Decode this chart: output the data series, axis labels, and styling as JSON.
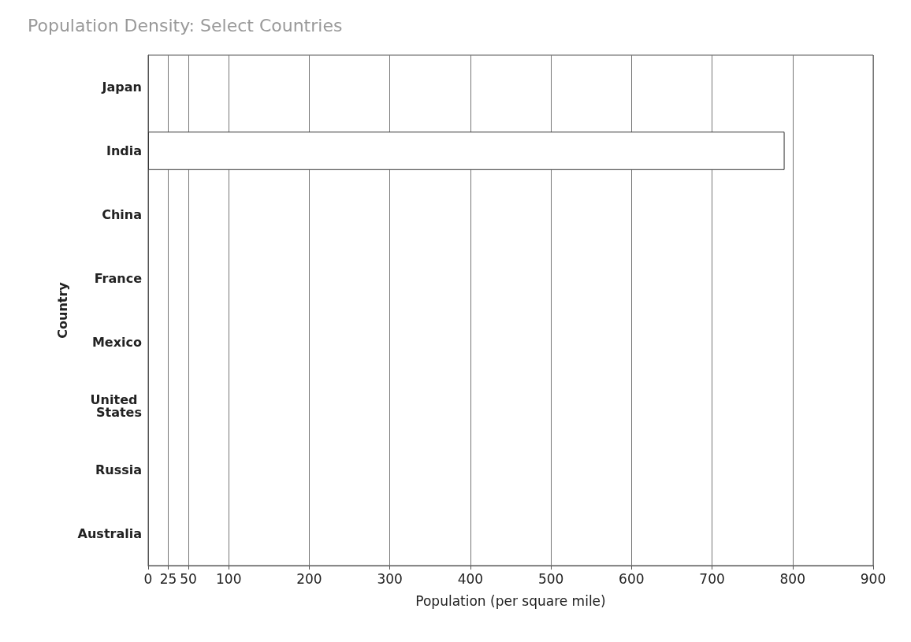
{
  "chart_data": {
    "type": "bar",
    "orientation": "horizontal",
    "title": "Population Density: Select Countries",
    "xlabel": "Population (per square mile)",
    "ylabel": "Country",
    "categories": [
      "Japan",
      "India",
      "China",
      "France",
      "Mexico",
      "United States",
      "Russia",
      "Australia"
    ],
    "values": [
      null,
      790,
      null,
      null,
      null,
      null,
      null,
      null
    ],
    "color": "#ffffff",
    "xlim": [
      0,
      900
    ],
    "xticks": [
      0,
      25,
      50,
      100,
      200,
      300,
      400,
      500,
      600,
      700,
      800,
      900
    ],
    "grid": "x"
  }
}
